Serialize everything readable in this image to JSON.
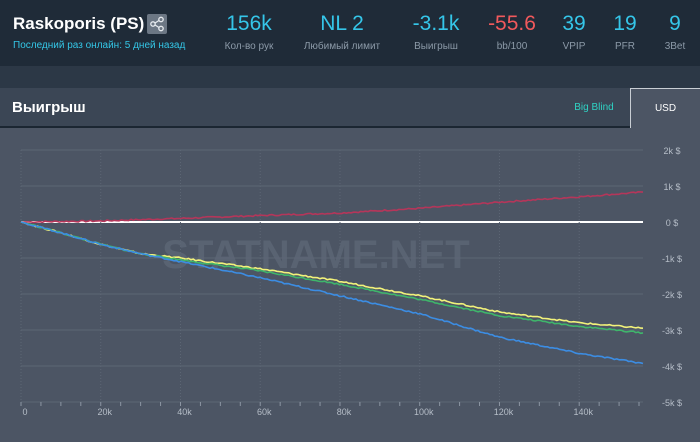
{
  "header": {
    "player_name": "Raskoporis (PS)",
    "share_icon": "share-icon",
    "last_online": "Последний раз онлайн: 5 дней назад",
    "stats": [
      {
        "value": "156k",
        "label": "Кол-во рук",
        "color": "#35c6e9"
      },
      {
        "value": "NL 2",
        "label": "Любимый лимит",
        "color": "#35c6e9"
      },
      {
        "value": "-3.1k",
        "label": "Выигрыш",
        "color": "#35c6e9"
      },
      {
        "value": "-55.6",
        "label": "bb/100",
        "color": "#f2595c"
      },
      {
        "value": "39",
        "label": "VPIP",
        "color": "#35c6e9"
      },
      {
        "value": "19",
        "label": "PFR",
        "color": "#35c6e9"
      },
      {
        "value": "9",
        "label": "3Bet",
        "color": "#35c6e9"
      }
    ]
  },
  "panel": {
    "title": "Выигрыш",
    "tab_bb": "Big Blind",
    "tab_usd": "USD",
    "active_tab": "USD",
    "watermark": "STATNAME.NET"
  },
  "chart_data": {
    "type": "line",
    "x_ticks": [
      "0",
      "20k",
      "40k",
      "60k",
      "80k",
      "100k",
      "120k",
      "140k"
    ],
    "y_ticks": [
      "2k $",
      "1k $",
      "0 $",
      "-1k $",
      "-2k $",
      "-3k $",
      "-4k $",
      "-5k $"
    ],
    "xlim": [
      0,
      156000
    ],
    "ylim": [
      -5000,
      2000
    ],
    "grid": true,
    "series": [
      {
        "color": "#b5365a",
        "x": [
          0,
          20000,
          40000,
          60000,
          80000,
          100000,
          120000,
          140000,
          156000
        ],
        "y": [
          0,
          30,
          100,
          180,
          250,
          380,
          550,
          700,
          830
        ]
      },
      {
        "color": "#f2f27a",
        "x": [
          0,
          5000,
          10000,
          20000,
          30000,
          40000,
          60000,
          80000,
          100000,
          120000,
          140000,
          156000
        ],
        "y": [
          0,
          -150,
          -300,
          -620,
          -880,
          -1000,
          -1300,
          -1650,
          -2050,
          -2500,
          -2800,
          -2950
        ]
      },
      {
        "color": "#3fb56b",
        "x": [
          0,
          5000,
          10000,
          20000,
          30000,
          40000,
          60000,
          80000,
          100000,
          120000,
          140000,
          156000
        ],
        "y": [
          0,
          -150,
          -300,
          -620,
          -880,
          -1050,
          -1360,
          -1730,
          -2150,
          -2600,
          -2900,
          -3080
        ]
      },
      {
        "color": "#3c8de3",
        "x": [
          0,
          5000,
          10000,
          20000,
          30000,
          40000,
          60000,
          80000,
          100000,
          120000,
          140000,
          156000
        ],
        "y": [
          0,
          -150,
          -300,
          -620,
          -880,
          -1100,
          -1550,
          -2050,
          -2550,
          -3200,
          -3650,
          -3930
        ]
      }
    ]
  }
}
